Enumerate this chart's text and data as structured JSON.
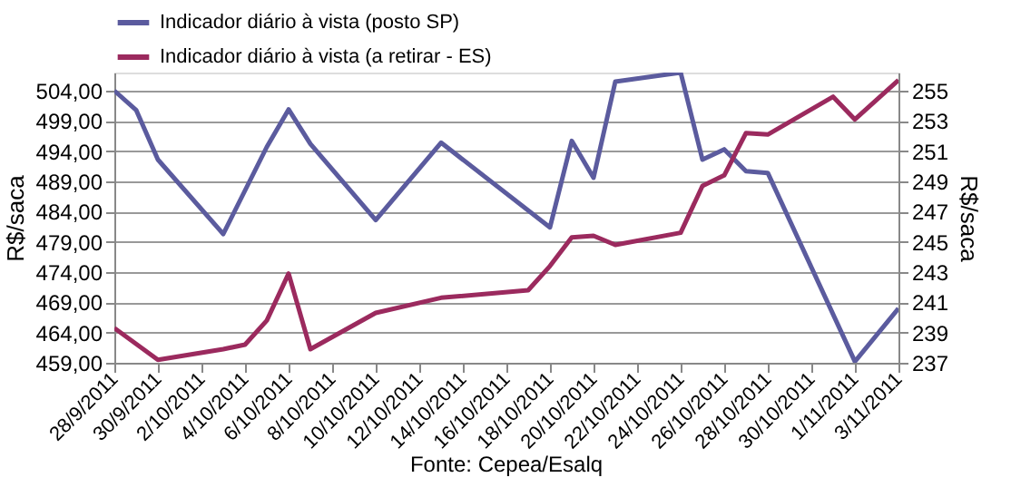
{
  "chart_data": {
    "type": "line",
    "ylabel": "R$/saca",
    "y2label": "R$/saca",
    "annotations": [
      "Fonte: Cepea/Esalq"
    ],
    "series": [
      {
        "name": "Indicador diário à vista (posto SP)",
        "color": "#5b5b9e",
        "axis": "y",
        "x": [
          "2011-09-28",
          "2011-09-29",
          "2011-09-30",
          "2011-10-03",
          "2011-10-05",
          "2011-10-06",
          "2011-10-07",
          "2011-10-10",
          "2011-10-13",
          "2011-10-18",
          "2011-10-19",
          "2011-10-20",
          "2011-10-21",
          "2011-10-24",
          "2011-10-25",
          "2011-10-26",
          "2011-10-27",
          "2011-10-28",
          "2011-11-01",
          "2011-11-03"
        ],
        "values": [
          504.0,
          500.8,
          492.6,
          480.3,
          494.7,
          500.9,
          495.2,
          482.6,
          495.4,
          481.4,
          495.7,
          489.6,
          505.5,
          507.0,
          492.6,
          494.3,
          490.7,
          490.4,
          459.2,
          468.0
        ]
      },
      {
        "name": "Indicador diário à vista (a retirar - ES)",
        "color": "#9b2a5e",
        "axis": "y2",
        "x": [
          "2011-09-28",
          "2011-09-30",
          "2011-10-03",
          "2011-10-04",
          "2011-10-05",
          "2011-10-06",
          "2011-10-07",
          "2011-10-10",
          "2011-10-13",
          "2011-10-17",
          "2011-10-18",
          "2011-10-19",
          "2011-10-20",
          "2011-10-21",
          "2011-10-24",
          "2011-10-25",
          "2011-10-26",
          "2011-10-27",
          "2011-10-28",
          "2011-10-31",
          "2011-11-01",
          "2011-11-03"
        ],
        "values": [
          239.3,
          237.2,
          237.9,
          238.2,
          239.8,
          242.9,
          237.9,
          240.3,
          241.3,
          241.8,
          243.4,
          245.3,
          245.4,
          244.8,
          245.6,
          248.7,
          249.4,
          252.2,
          252.1,
          254.6,
          253.1,
          255.7
        ]
      }
    ],
    "xlim": [
      "2011-09-28",
      "2011-11-03"
    ],
    "xticks": [
      {
        "value": "2011-09-28",
        "label": "28/9/2011"
      },
      {
        "value": "2011-09-30",
        "label": "30/9/2011"
      },
      {
        "value": "2011-10-02",
        "label": "2/10/2011"
      },
      {
        "value": "2011-10-04",
        "label": "4/10/2011"
      },
      {
        "value": "2011-10-06",
        "label": "6/10/2011"
      },
      {
        "value": "2011-10-08",
        "label": "8/10/2011"
      },
      {
        "value": "2011-10-10",
        "label": "10/10/2011"
      },
      {
        "value": "2011-10-12",
        "label": "12/10/2011"
      },
      {
        "value": "2011-10-14",
        "label": "14/10/2011"
      },
      {
        "value": "2011-10-16",
        "label": "16/10/2011"
      },
      {
        "value": "2011-10-18",
        "label": "18/10/2011"
      },
      {
        "value": "2011-10-20",
        "label": "20/10/2011"
      },
      {
        "value": "2011-10-22",
        "label": "22/10/2011"
      },
      {
        "value": "2011-10-24",
        "label": "24/10/2011"
      },
      {
        "value": "2011-10-26",
        "label": "26/10/2011"
      },
      {
        "value": "2011-10-28",
        "label": "28/10/2011"
      },
      {
        "value": "2011-10-30",
        "label": "30/10/2011"
      },
      {
        "value": "2011-11-01",
        "label": "1/11/2011"
      },
      {
        "value": "2011-11-03",
        "label": "3/11/2011"
      }
    ],
    "ylim": [
      459,
      507
    ],
    "yticks": [
      {
        "value": 459,
        "label": "459,00"
      },
      {
        "value": 464,
        "label": "464,00"
      },
      {
        "value": 469,
        "label": "469,00"
      },
      {
        "value": 474,
        "label": "474,00"
      },
      {
        "value": 479,
        "label": "479,00"
      },
      {
        "value": 484,
        "label": "484,00"
      },
      {
        "value": 489,
        "label": "489,00"
      },
      {
        "value": 494,
        "label": "494,00"
      },
      {
        "value": 499,
        "label": "499,00"
      },
      {
        "value": 504,
        "label": "504,00"
      }
    ],
    "y2lim": [
      237,
      256.2
    ],
    "y2ticks": [
      237,
      239,
      241,
      243,
      245,
      247,
      249,
      251,
      253,
      255
    ],
    "grid": "y",
    "legend": "top",
    "marker": "none",
    "line_style": "solid"
  }
}
